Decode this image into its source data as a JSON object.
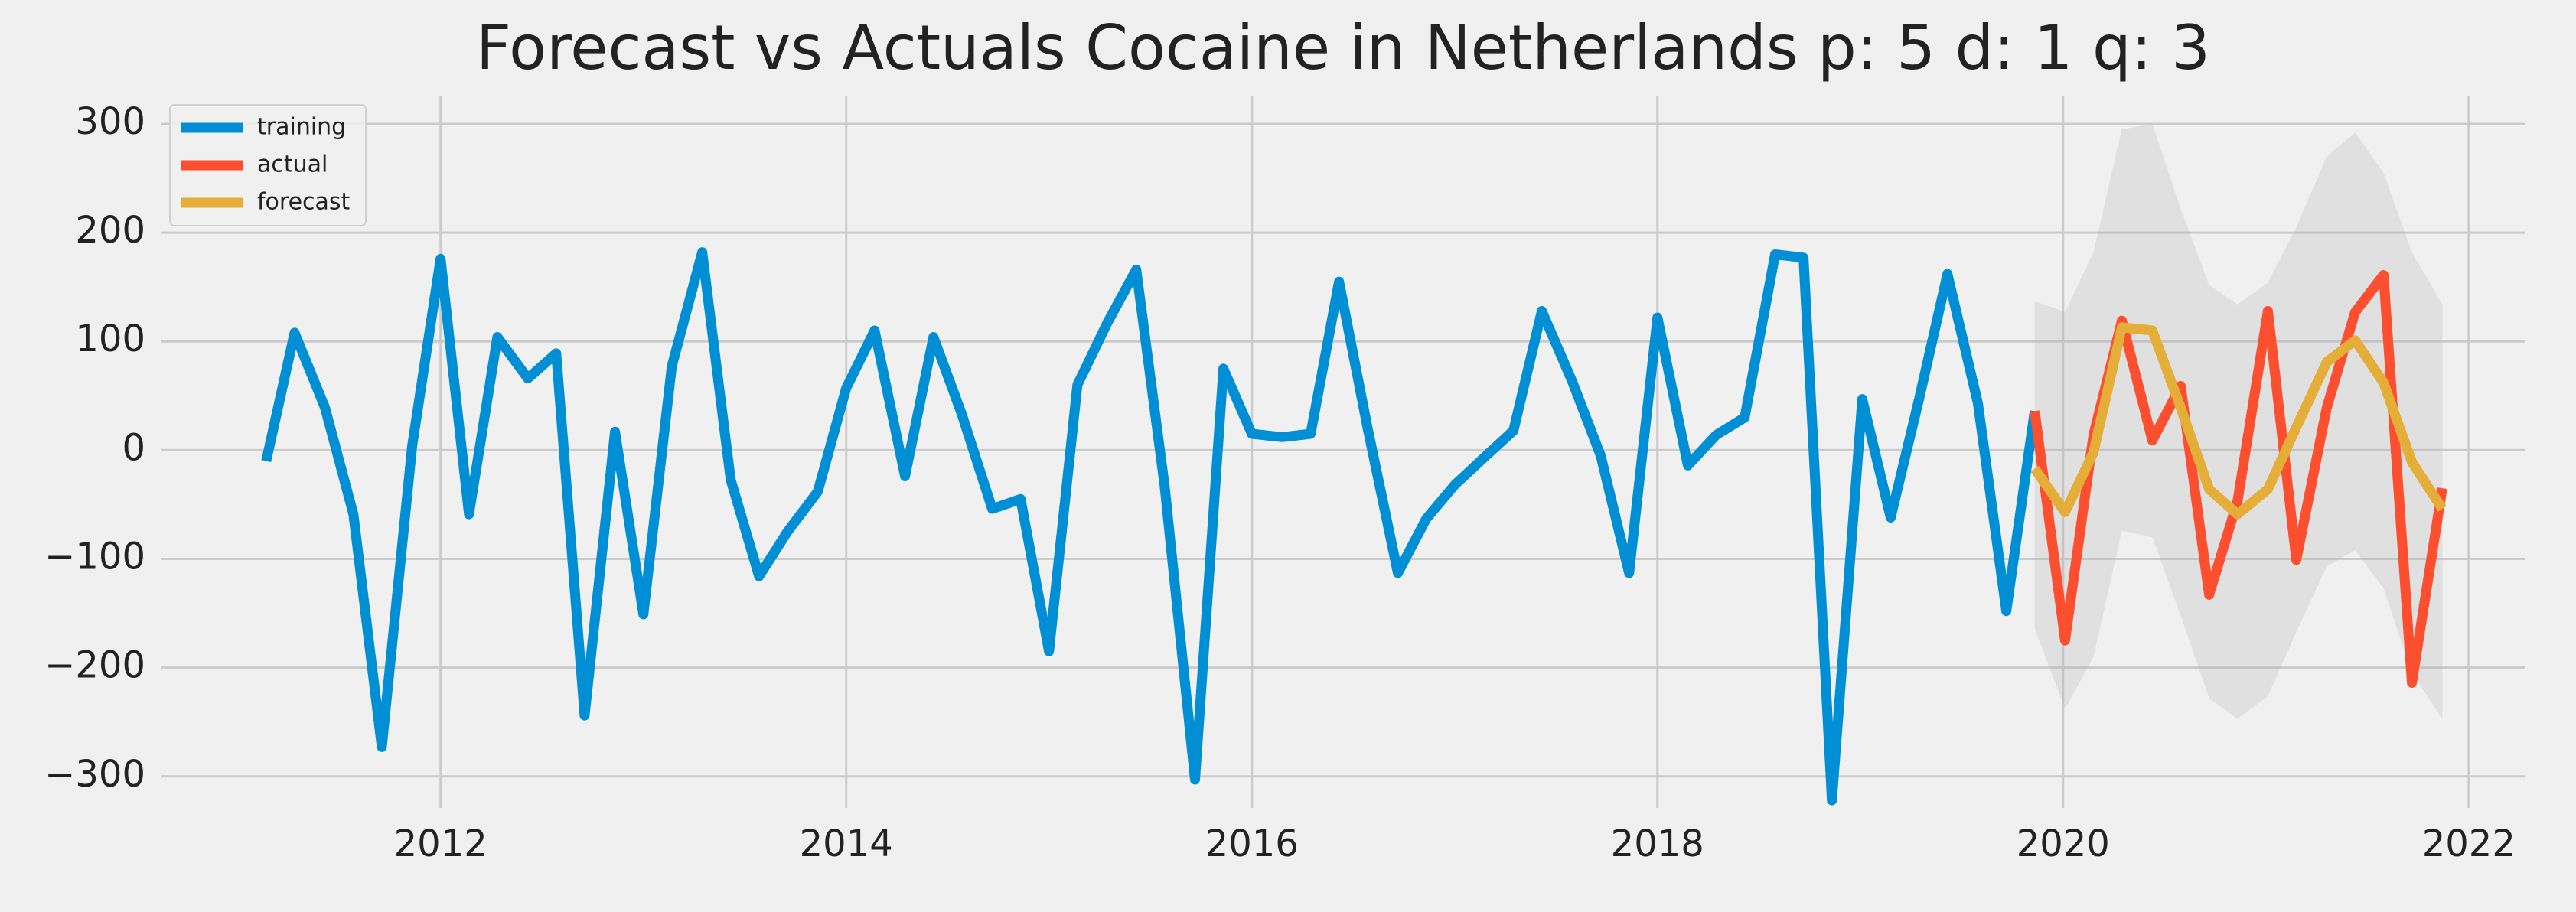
{
  "chart_data": {
    "type": "line",
    "title": "Forecast vs Actuals Cocaine in Netherlands p: 5 d: 1 q: 3",
    "x": [
      2011.14,
      2011.28,
      2011.43,
      2011.57,
      2011.71,
      2011.86,
      2012.0,
      2012.14,
      2012.28,
      2012.43,
      2012.57,
      2012.71,
      2012.86,
      2013.0,
      2013.14,
      2013.29,
      2013.43,
      2013.57,
      2013.71,
      2013.86,
      2014.0,
      2014.14,
      2014.29,
      2014.43,
      2014.57,
      2014.72,
      2014.86,
      2015.0,
      2015.14,
      2015.29,
      2015.43,
      2015.57,
      2015.72,
      2015.86,
      2016.0,
      2016.15,
      2016.29,
      2016.43,
      2016.57,
      2016.72,
      2016.86,
      2017.0,
      2017.15,
      2017.29,
      2017.43,
      2017.58,
      2017.72,
      2017.86,
      2018.0,
      2018.15,
      2018.29,
      2018.43,
      2018.58,
      2018.72,
      2018.86,
      2019.01,
      2019.15,
      2019.29,
      2019.43,
      2019.58,
      2019.72,
      2019.86,
      2020.01,
      2020.15,
      2020.29,
      2020.44,
      2020.58,
      2020.72,
      2020.86,
      2021.01,
      2021.15,
      2021.3,
      2021.44,
      2021.58,
      2021.72,
      2021.87
    ],
    "series": [
      {
        "name": "training",
        "color": "#008fd5",
        "values": [
          -10,
          108,
          39,
          -59,
          -273,
          4,
          176,
          -59,
          104,
          66,
          89,
          -244,
          17,
          -151,
          77,
          182,
          -27,
          -116,
          -75,
          -38,
          57,
          110,
          -24,
          104,
          33,
          -54,
          -45,
          -185,
          60,
          118,
          166,
          -33,
          -303,
          75,
          15,
          12,
          15,
          155,
          21,
          -113,
          -63,
          -32,
          -6,
          18,
          128,
          63,
          -5,
          -113,
          122,
          -14,
          14,
          30,
          180,
          177,
          -322,
          47,
          -62,
          47,
          162,
          43,
          -148,
          36,
          null,
          null,
          null,
          null,
          null,
          null,
          null,
          null,
          null,
          null,
          null,
          null,
          null,
          null
        ]
      },
      {
        "name": "actual",
        "color": "#fc4f30",
        "values": [
          null,
          null,
          null,
          null,
          null,
          null,
          null,
          null,
          null,
          null,
          null,
          null,
          null,
          null,
          null,
          null,
          null,
          null,
          null,
          null,
          null,
          null,
          null,
          null,
          null,
          null,
          null,
          null,
          null,
          null,
          null,
          null,
          null,
          null,
          null,
          null,
          null,
          null,
          null,
          null,
          null,
          null,
          null,
          null,
          null,
          null,
          null,
          null,
          null,
          null,
          null,
          null,
          null,
          null,
          null,
          null,
          null,
          null,
          null,
          null,
          null,
          36,
          -175,
          14,
          119,
          9,
          59,
          -133,
          -47,
          128,
          -101,
          39,
          127,
          161,
          -214,
          -35
        ]
      },
      {
        "name": "forecast",
        "color": "#e5ae38",
        "values": [
          null,
          null,
          null,
          null,
          null,
          null,
          null,
          null,
          null,
          null,
          null,
          null,
          null,
          null,
          null,
          null,
          null,
          null,
          null,
          null,
          null,
          null,
          null,
          null,
          null,
          null,
          null,
          null,
          null,
          null,
          null,
          null,
          null,
          null,
          null,
          null,
          null,
          null,
          null,
          null,
          null,
          null,
          null,
          null,
          null,
          null,
          null,
          null,
          null,
          null,
          null,
          null,
          null,
          null,
          null,
          null,
          null,
          null,
          null,
          null,
          null,
          -17,
          -57,
          -2,
          113,
          110,
          39,
          -36,
          -59,
          -36,
          21,
          81,
          101,
          62,
          -11,
          -54
        ]
      }
    ],
    "band": {
      "color": "#b0b0b0",
      "upper": [
        null,
        null,
        null,
        null,
        null,
        null,
        null,
        null,
        null,
        null,
        null,
        null,
        null,
        null,
        null,
        null,
        null,
        null,
        null,
        null,
        null,
        null,
        null,
        null,
        null,
        null,
        null,
        null,
        null,
        null,
        null,
        null,
        null,
        null,
        null,
        null,
        null,
        null,
        null,
        null,
        null,
        null,
        null,
        null,
        null,
        null,
        null,
        null,
        null,
        null,
        null,
        null,
        null,
        null,
        null,
        null,
        null,
        null,
        null,
        null,
        null,
        137,
        127,
        182,
        295,
        300,
        222,
        152,
        134,
        154,
        205,
        270,
        292,
        255,
        182,
        134
      ],
      "lower": [
        null,
        null,
        null,
        null,
        null,
        null,
        null,
        null,
        null,
        null,
        null,
        null,
        null,
        null,
        null,
        null,
        null,
        null,
        null,
        null,
        null,
        null,
        null,
        null,
        null,
        null,
        null,
        null,
        null,
        null,
        null,
        null,
        null,
        null,
        null,
        null,
        null,
        null,
        null,
        null,
        null,
        null,
        null,
        null,
        null,
        null,
        null,
        null,
        null,
        null,
        null,
        null,
        null,
        null,
        null,
        null,
        null,
        null,
        null,
        null,
        null,
        -164,
        -238,
        -190,
        -74,
        -80,
        -152,
        -228,
        -247,
        -226,
        -167,
        -107,
        -92,
        -127,
        -205,
        -247
      ]
    },
    "xlim": [
      2010.62,
      2022.28
    ],
    "ylim": [
      -329,
      326
    ],
    "xticks": [
      2012,
      2014,
      2016,
      2018,
      2020,
      2022
    ],
    "yticks": [
      {
        "value": -300,
        "label": "−300"
      },
      {
        "value": -200,
        "label": "−200"
      },
      {
        "value": -100,
        "label": "−100"
      },
      0,
      100,
      200,
      300
    ],
    "grid": true,
    "legend": "upper left"
  }
}
